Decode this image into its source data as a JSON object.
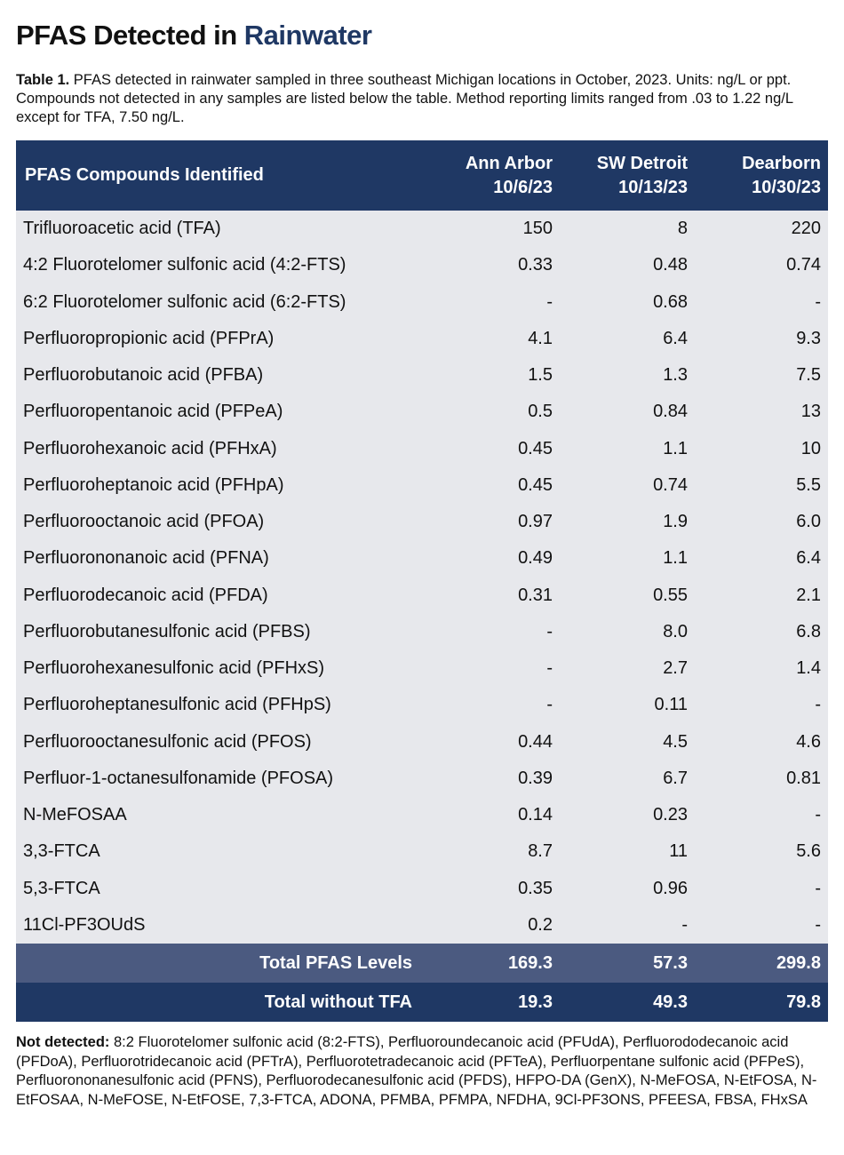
{
  "title": {
    "main": "PFAS Detected in ",
    "accent": "Rainwater"
  },
  "caption": {
    "label": "Table 1.",
    "text": " PFAS detected in rainwater sampled in three southeast Michigan locations in October, 2023. Units: ng/L or ppt. Compounds not detected in any samples are listed below the table. Method reporting limits ranged from .03 to 1.22 ng/L except for TFA, 7.50 ng/L."
  },
  "colors": {
    "header": "#1f3864",
    "total_row": "#4b5a80",
    "body": "#e7e8ec",
    "accent": "#1f3864"
  },
  "table": {
    "headers": [
      "PFAS Compounds Identified",
      "Ann Arbor\n10/6/23",
      "SW Detroit\n10/13/23",
      "Dearborn\n10/30/23"
    ],
    "rows": [
      [
        "Trifluoroacetic acid (TFA)",
        "150",
        "8",
        "220"
      ],
      [
        "4:2 Fluorotelomer sulfonic acid (4:2-FTS)",
        "0.33",
        "0.48",
        "0.74"
      ],
      [
        "6:2 Fluorotelomer sulfonic acid (6:2-FTS)",
        "-",
        "0.68",
        "-"
      ],
      [
        "Perfluoropropionic acid (PFPrA)",
        "4.1",
        "6.4",
        "9.3"
      ],
      [
        "Perfluorobutanoic acid (PFBA)",
        "1.5",
        "1.3",
        "7.5"
      ],
      [
        "Perfluoropentanoic acid (PFPeA)",
        "0.5",
        "0.84",
        "13"
      ],
      [
        "Perfluorohexanoic acid (PFHxA)",
        "0.45",
        "1.1",
        "10"
      ],
      [
        "Perfluoroheptanoic acid (PFHpA)",
        "0.45",
        "0.74",
        "5.5"
      ],
      [
        "Perfluorooctanoic acid (PFOA)",
        "0.97",
        "1.9",
        "6.0"
      ],
      [
        "Perfluorononanoic acid (PFNA)",
        "0.49",
        "1.1",
        "6.4"
      ],
      [
        "Perfluorodecanoic acid (PFDA)",
        "0.31",
        "0.55",
        "2.1"
      ],
      [
        "Perfluorobutanesulfonic acid (PFBS)",
        "-",
        "8.0",
        "6.8"
      ],
      [
        "Perfluorohexanesulfonic acid (PFHxS)",
        "-",
        "2.7",
        "1.4"
      ],
      [
        "Perfluoroheptanesulfonic acid (PFHpS)",
        "-",
        "0.11",
        "-"
      ],
      [
        "Perfluorooctanesulfonic acid (PFOS)",
        "0.44",
        "4.5",
        "4.6"
      ],
      [
        "Perfluor-1-octanesulfonamide (PFOSA)",
        "0.39",
        "6.7",
        "0.81"
      ],
      [
        "N-MeFOSAA",
        "0.14",
        "0.23",
        "-"
      ],
      [
        "3,3-FTCA",
        "8.7",
        "11",
        "5.6"
      ],
      [
        "5,3-FTCA",
        "0.35",
        "0.96",
        "-"
      ],
      [
        "11Cl-PF3OUdS",
        "0.2",
        "-",
        "-"
      ]
    ],
    "totals": [
      [
        "Total PFAS Levels",
        "169.3",
        "57.3",
        "299.8"
      ],
      [
        "Total without TFA",
        "19.3",
        "49.3",
        "79.8"
      ]
    ]
  },
  "not_detected": {
    "label": "Not detected:",
    "text": " 8:2 Fluorotelomer sulfonic acid (8:2-FTS), Perfluoroundecanoic acid (PFUdA), Perfluorododecanoic acid (PFDoA), Perfluorotridecanoic acid (PFTrA), Perfluorotetradecanoic acid (PFTeA), Perfluorpentane sulfonic acid (PFPeS), Perfluorononanesulfonic acid (PFNS), Perfluorodecanesulfonic acid (PFDS), HFPO-DA (GenX), N-MeFOSA, N-EtFOSA, N-EtFOSAA, N-MeFOSE, N-EtFOSE, 7,3-FTCA, ADONA, PFMBA, PFMPA, NFDHA, 9Cl-PF3ONS, PFEESA, FBSA, FHxSA"
  }
}
